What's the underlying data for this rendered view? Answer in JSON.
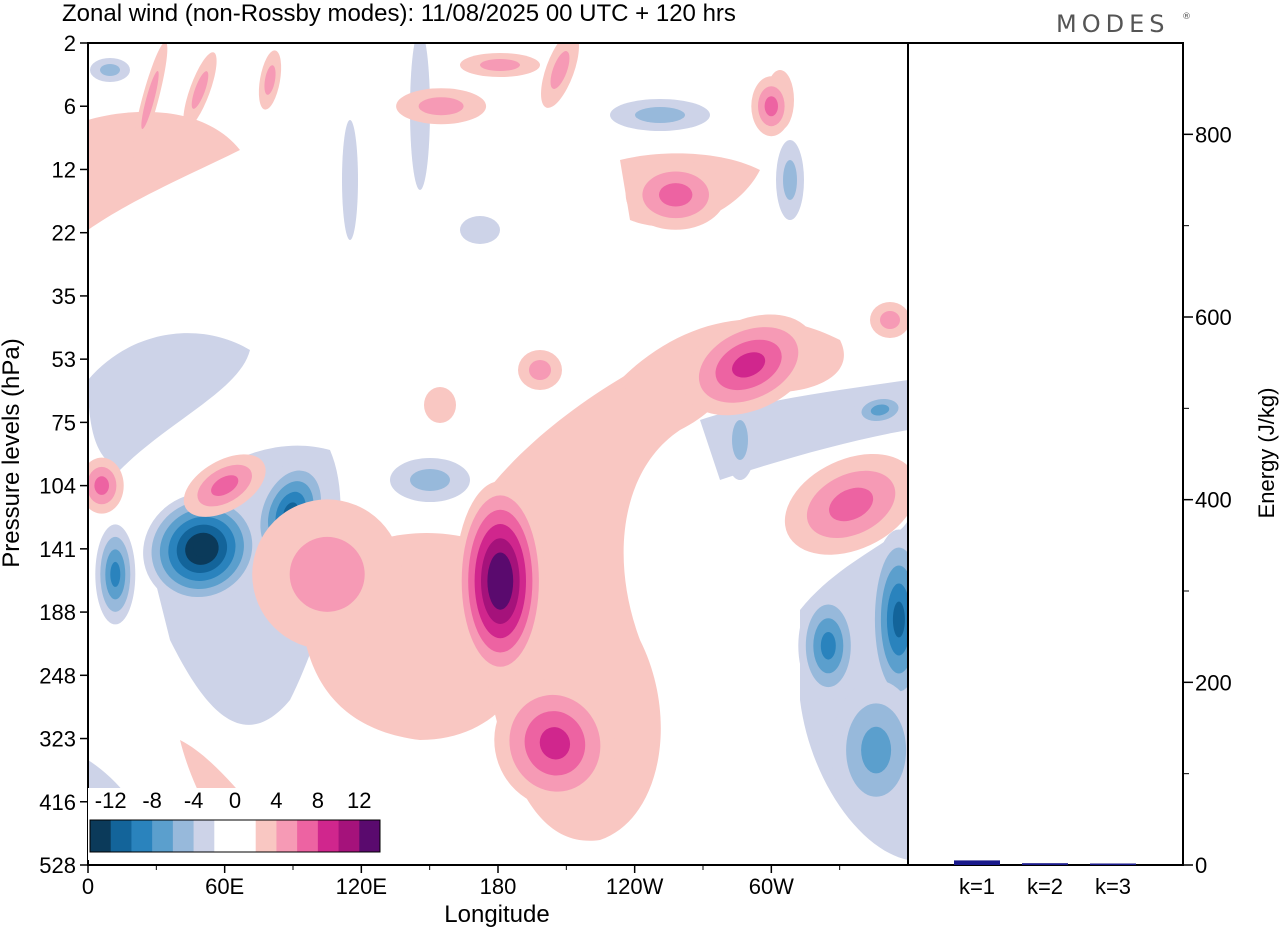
{
  "chart_data": [
    {
      "type": "heatmap",
      "title": "Zonal wind (non-Rossby modes):  11/08/2025  00 UTC  + 120 hrs",
      "xlabel": "Longitude",
      "ylabel": "Pressure levels (hPa)",
      "x_ticks": [
        "0",
        "60E",
        "120E",
        "180",
        "120W",
        "60W"
      ],
      "x_tick_values": [
        0,
        60,
        120,
        180,
        240,
        300
      ],
      "xlim": [
        0,
        360
      ],
      "y_ticks": [
        "2",
        "6",
        "12",
        "22",
        "35",
        "53",
        "75",
        "104",
        "141",
        "188",
        "248",
        "323",
        "416",
        "528"
      ],
      "colorbar": {
        "labels": [
          "-12",
          "-8",
          "-4",
          "0",
          "4",
          "8",
          "12"
        ],
        "levels": [
          -14,
          -12,
          -10,
          -8,
          -6,
          -4,
          -2,
          0,
          2,
          4,
          6,
          8,
          10,
          12,
          14
        ],
        "colors": [
          "#0b3a5a",
          "#13649a",
          "#2a83bd",
          "#5b9fcd",
          "#97b9db",
          "#cdd3e8",
          "#ffffff",
          "#ffffff",
          "#f9c7c2",
          "#f69ab5",
          "#ed63a2",
          "#d0268d",
          "#a5127b",
          "#5a0a6e"
        ]
      },
      "features": [
        {
          "lon": 50,
          "level": 141,
          "value": -14
        },
        {
          "lon": 89,
          "level": 120,
          "value": -10
        },
        {
          "lon": 12,
          "level": 160,
          "value": -8
        },
        {
          "lon": 356,
          "level": 195,
          "value": -10
        },
        {
          "lon": 325,
          "level": 220,
          "value": -8
        },
        {
          "lon": 346,
          "level": 340,
          "value": -6
        },
        {
          "lon": 181,
          "level": 165,
          "value": 13
        },
        {
          "lon": 205,
          "level": 330,
          "value": 8
        },
        {
          "lon": 290,
          "level": 55,
          "value": 8
        },
        {
          "lon": 335,
          "level": 115,
          "value": 6
        },
        {
          "lon": 105,
          "level": 160,
          "value": 4
        },
        {
          "lon": 6,
          "level": 104,
          "value": 6
        },
        {
          "lon": 60,
          "level": 104,
          "value": 6
        },
        {
          "lon": 155,
          "level": 6,
          "value": 4
        },
        {
          "lon": 300,
          "level": 6,
          "value": 6
        },
        {
          "lon": 258,
          "level": 16,
          "value": 6
        }
      ]
    },
    {
      "type": "bar",
      "ylabel": "Energy (J/kg)",
      "categories": [
        "k=1",
        "k=2",
        "k=3"
      ],
      "values": [
        5,
        2,
        1
      ],
      "ylim": [
        0,
        900
      ],
      "y_ticks": [
        "0",
        "200",
        "400",
        "600",
        "800"
      ],
      "y_tick_values": [
        0,
        200,
        400,
        600,
        800
      ],
      "bar_color": "#1a1a8c"
    }
  ],
  "logo": {
    "text": "MODES",
    "mark": "®"
  }
}
